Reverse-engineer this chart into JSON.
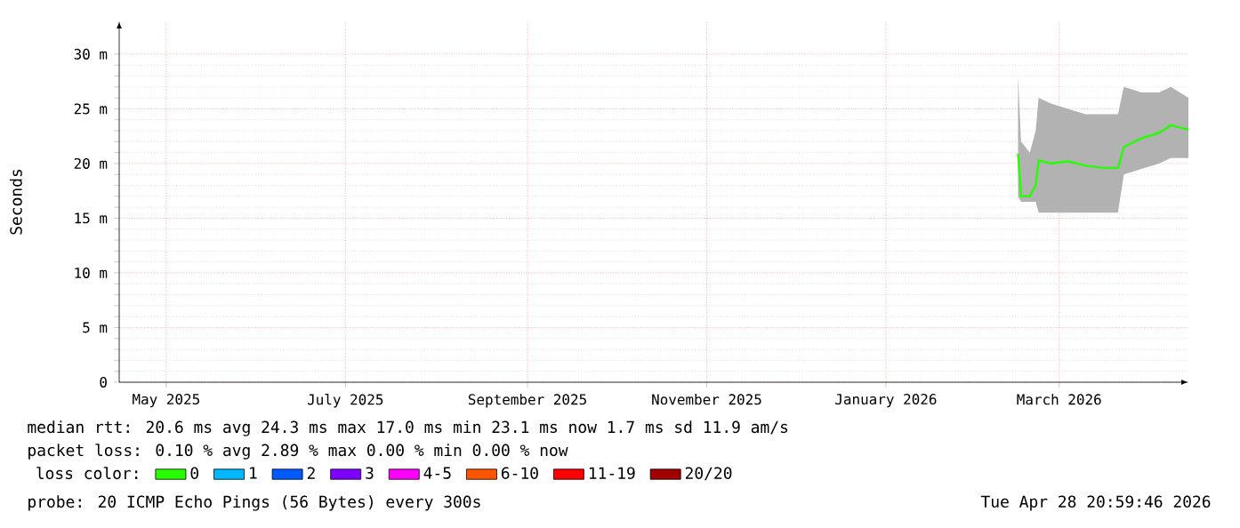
{
  "chart_data": {
    "type": "line",
    "ylabel": "Seconds",
    "legend_title": "loss color:",
    "legend": "bottom",
    "grid": true,
    "xlim": [
      "2025-04-29",
      "2026-04-28"
    ],
    "xticks": [
      {
        "value": "2025-05-15",
        "label": "May 2025"
      },
      {
        "value": "2025-07-15",
        "label": "July 2025"
      },
      {
        "value": "2025-09-15",
        "label": "September 2025"
      },
      {
        "value": "2025-11-15",
        "label": "November 2025"
      },
      {
        "value": "2026-01-15",
        "label": "January 2026"
      },
      {
        "value": "2026-03-15",
        "label": "March 2026"
      }
    ],
    "ylim": [
      0,
      33
    ],
    "yticks": [
      0,
      {
        "value": 5,
        "label": "5 m"
      },
      {
        "value": 10,
        "label": "10 m"
      },
      {
        "value": 15,
        "label": "15 m"
      },
      {
        "value": 20,
        "label": "20 m"
      },
      {
        "value": 25,
        "label": "25 m"
      },
      {
        "value": 30,
        "label": "30 m"
      }
    ],
    "x": [
      "2026-03-01",
      "2026-03-02",
      "2026-03-05",
      "2026-03-07",
      "2026-03-08",
      "2026-03-12",
      "2026-03-18",
      "2026-03-24",
      "2026-03-30",
      "2026-04-04",
      "2026-04-06",
      "2026-04-12",
      "2026-04-18",
      "2026-04-22",
      "2026-04-28"
    ],
    "series": [
      {
        "name": "0",
        "color": "#26ff00",
        "values": [
          20.9,
          17.0,
          17.0,
          18.0,
          20.3,
          20.0,
          20.2,
          19.8,
          19.6,
          19.6,
          21.5,
          22.3,
          22.8,
          23.5,
          23.1
        ],
        "lower": [
          17.0,
          16.5,
          16.5,
          16.5,
          15.5,
          15.5,
          15.5,
          15.5,
          15.5,
          15.5,
          19.0,
          19.5,
          20.0,
          20.5,
          20.5
        ],
        "upper": [
          28.0,
          22.0,
          21.0,
          23.0,
          26.0,
          25.5,
          25.0,
          24.5,
          24.5,
          24.5,
          27.0,
          26.5,
          26.5,
          27.0,
          26.0
        ]
      },
      {
        "name": "1",
        "color": "#00b8ff",
        "values": [
          null,
          null,
          null,
          null,
          null,
          null,
          null,
          null,
          null,
          null,
          null,
          null,
          null,
          null,
          null
        ]
      },
      {
        "name": "2",
        "color": "#0059ff",
        "values": [
          null,
          null,
          null,
          null,
          null,
          null,
          null,
          null,
          null,
          null,
          null,
          null,
          null,
          null,
          null
        ]
      },
      {
        "name": "3",
        "color": "#7e00ff",
        "values": [
          null,
          null,
          null,
          null,
          null,
          null,
          null,
          null,
          null,
          null,
          null,
          null,
          null,
          null,
          null
        ]
      },
      {
        "name": "4-5",
        "color": "#ff00ff",
        "values": [
          null,
          null,
          null,
          null,
          null,
          null,
          null,
          null,
          null,
          null,
          null,
          null,
          null,
          null,
          null
        ]
      },
      {
        "name": "6-10",
        "color": "#ff5500",
        "values": [
          null,
          null,
          null,
          null,
          null,
          null,
          null,
          null,
          null,
          null,
          null,
          null,
          null,
          null,
          null
        ]
      },
      {
        "name": "11-19",
        "color": "#ff0000",
        "values": [
          null,
          null,
          null,
          null,
          null,
          null,
          null,
          null,
          null,
          null,
          null,
          null,
          null,
          null,
          null
        ]
      },
      {
        "name": "20/20",
        "color": "#a10000",
        "values": [
          null,
          null,
          null,
          null,
          null,
          null,
          null,
          null,
          null,
          null,
          null,
          null,
          null,
          null,
          null
        ]
      }
    ],
    "annotations": [
      "median rtt:  20.6 ms avg  24.3 ms max  17.0 ms min  23.1 ms now  1.7 ms sd  11.9   am/s",
      "packet loss: 0.10 % avg  2.89 % max  0.00 % min  0.00 % now",
      "probe:       20 ICMP Echo Pings (56 Bytes) every 300s",
      "Tue Apr 28 20:59:46 2026"
    ]
  }
}
